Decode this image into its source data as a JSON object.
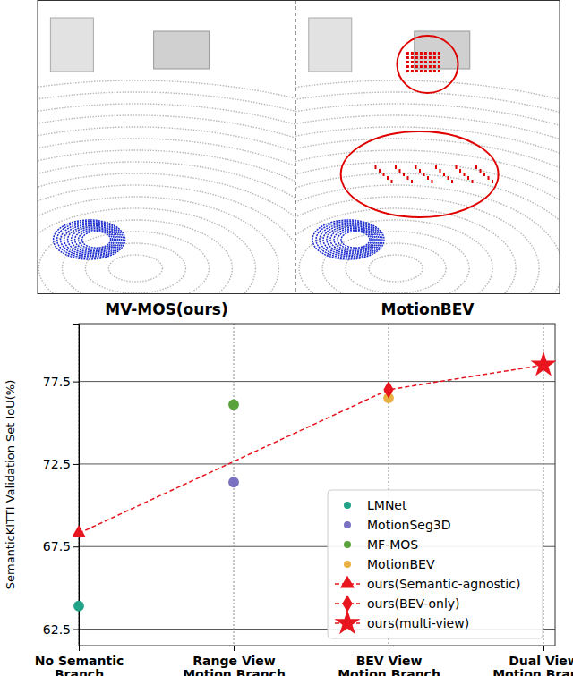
{
  "chart_data": {
    "type": "scatter",
    "annotations": [
      "MV-MOS(ours)",
      "MotionBEV"
    ],
    "ylabel": "SemanticKITTI Validation Set IoU(%)",
    "categories": [
      "No Semantic\nBranch",
      "Range View\nMotion Branch",
      "BEV View\nMotion Branch",
      "Dual View\nMotion Branch"
    ],
    "ylim": [
      61.5,
      81
    ],
    "yticks": [
      62.5,
      67.5,
      72.5,
      77.5
    ],
    "grid": true,
    "legend": "lower right",
    "series": [
      {
        "name": "LMNet",
        "color": "#20a387",
        "marker": "circle",
        "values": [
          63.9,
          null,
          null,
          null
        ]
      },
      {
        "name": "MotionSeg3D",
        "color": "#7a72c0",
        "marker": "circle",
        "values": [
          null,
          71.4,
          null,
          null
        ]
      },
      {
        "name": "MF-MOS",
        "color": "#5aa33a",
        "marker": "circle",
        "values": [
          null,
          76.1,
          null,
          null
        ]
      },
      {
        "name": "MotionBEV",
        "color": "#e8b040",
        "marker": "circle",
        "values": [
          null,
          null,
          76.5,
          null
        ]
      },
      {
        "name": "ours(Semantic-agnostic)",
        "color": "#e8141e",
        "type": "line",
        "line_style": "dashed",
        "marker": "triangle",
        "values": [
          68.3,
          null,
          null,
          null
        ]
      },
      {
        "name": "ours(BEV-only)",
        "color": "#e8141e",
        "type": "line",
        "line_style": "dashed",
        "marker": "diamond",
        "values": [
          null,
          null,
          77.0,
          null
        ]
      },
      {
        "name": "ours(multi-view)",
        "color": "#e8141e",
        "type": "line",
        "line_style": "dashed",
        "marker": "star",
        "values": [
          null,
          null,
          null,
          78.5
        ]
      }
    ]
  }
}
